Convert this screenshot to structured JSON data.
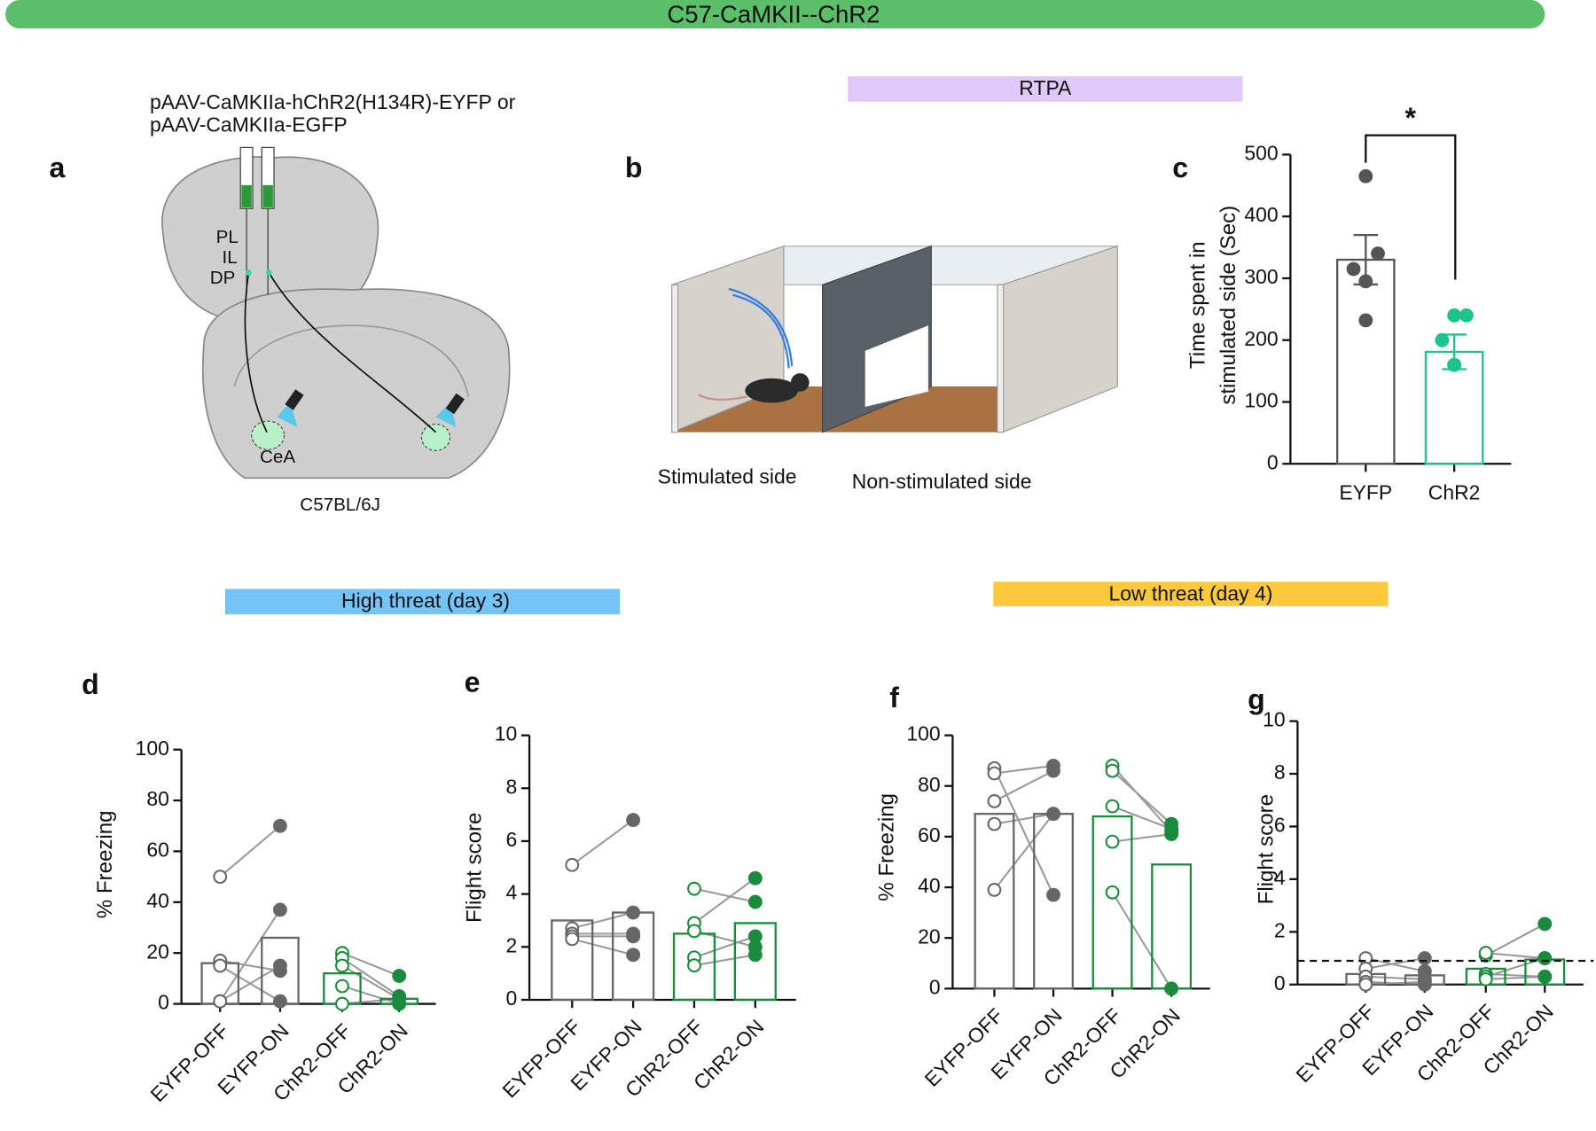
{
  "header": {
    "title": "C57-CaMKII--ChR2"
  },
  "banners": {
    "rtpa": "RTPA",
    "high": "High threat (day 3)",
    "low": "Low threat (day 4)"
  },
  "panel_labels": [
    "a",
    "b",
    "c",
    "d",
    "e",
    "f",
    "g"
  ],
  "panel_a": {
    "virus": [
      "pAAV-CaMKIIa-hChR2(H134R)-EYFP or",
      "pAAV-CaMKIIa-EGFP"
    ],
    "regions": [
      "PL",
      "IL",
      "DP",
      "CeA"
    ],
    "strain": "C57BL/6J"
  },
  "panel_b": {
    "sides": [
      "Stimulated side",
      "Non-stimulated side"
    ]
  },
  "chart_data": [
    {
      "type": "bar",
      "y_label": [
        "Time spent in",
        "stimulated side (Sec)"
      ],
      "categories": [
        "EYFP",
        "ChR2"
      ],
      "values": [
        330,
        181
      ],
      "errors": [
        40,
        28
      ],
      "colors": [
        "#555555",
        "#1ec38a"
      ],
      "filled": [
        true,
        true
      ],
      "points": [
        [
          465,
          340,
          315,
          295,
          232
        ],
        [
          240,
          240,
          200,
          160,
          160
        ]
      ],
      "ylim": [
        0,
        500
      ],
      "yticks": [
        0,
        100,
        200,
        300,
        400,
        500
      ],
      "significance": "*"
    },
    {
      "type": "bar",
      "y_label": [
        "% Freezing"
      ],
      "categories": [
        "EYFP-OFF",
        "EYFP-ON",
        "ChR2-OFF",
        "ChR2-ON"
      ],
      "values": [
        16,
        26,
        12,
        2
      ],
      "colors": [
        "#666666",
        "#666666",
        "#1a8a3c",
        "#1a8a3c"
      ],
      "filled": [
        false,
        true,
        false,
        true
      ],
      "paired": true,
      "points": [
        [
          50,
          17,
          15,
          1,
          1
        ],
        [
          70,
          13,
          1,
          37,
          15
        ],
        [
          20,
          18,
          15,
          7,
          0
        ],
        [
          11,
          3,
          2,
          0,
          2
        ]
      ],
      "ylim": [
        0,
        100
      ],
      "yticks": [
        0,
        20,
        40,
        60,
        80,
        100
      ]
    },
    {
      "type": "bar",
      "y_label": [
        "Flight score"
      ],
      "categories": [
        "EYFP-OFF",
        "EYFP-ON",
        "ChR2-OFF",
        "ChR2-ON"
      ],
      "values": [
        3.0,
        3.3,
        2.5,
        2.9
      ],
      "colors": [
        "#666666",
        "#666666",
        "#1a8a3c",
        "#1a8a3c"
      ],
      "filled": [
        false,
        true,
        false,
        true
      ],
      "paired": true,
      "points": [
        [
          5.1,
          2.7,
          2.5,
          2.4,
          2.3
        ],
        [
          6.8,
          3.3,
          2.5,
          2.4,
          1.7
        ],
        [
          4.2,
          2.9,
          1.6,
          1.3,
          2.6
        ],
        [
          3.7,
          4.6,
          2.4,
          1.7,
          2.0
        ]
      ],
      "ylim": [
        0,
        10
      ],
      "yticks": [
        0,
        2,
        4,
        6,
        8,
        10
      ]
    },
    {
      "type": "bar",
      "y_label": [
        "% Freezing"
      ],
      "categories": [
        "EYFP-OFF",
        "EYFP-ON",
        "ChR2-OFF",
        "ChR2-ON"
      ],
      "values": [
        69,
        69,
        68,
        49
      ],
      "colors": [
        "#666666",
        "#666666",
        "#1a8a3c",
        "#1a8a3c"
      ],
      "filled": [
        false,
        true,
        false,
        true
      ],
      "paired": true,
      "points": [
        [
          87,
          85,
          74,
          65,
          39
        ],
        [
          37,
          88,
          86,
          69,
          69
        ],
        [
          88,
          86,
          72,
          58,
          38
        ],
        [
          62,
          65,
          63,
          61,
          0
        ]
      ],
      "ylim": [
        0,
        100
      ],
      "yticks": [
        0,
        20,
        40,
        60,
        80,
        100
      ]
    },
    {
      "type": "bar",
      "y_label": [
        "Flight score"
      ],
      "categories": [
        "EYFP-OFF",
        "EYFP-ON",
        "ChR2-OFF",
        "ChR2-ON"
      ],
      "values": [
        0.4,
        0.35,
        0.6,
        0.95
      ],
      "colors": [
        "#666666",
        "#666666",
        "#1a8a3c",
        "#1a8a3c"
      ],
      "filled": [
        false,
        true,
        false,
        true
      ],
      "paired": true,
      "points": [
        [
          1.0,
          0.6,
          0.3,
          0.1,
          0
        ],
        [
          0.5,
          1.0,
          0.2,
          0,
          0.1
        ],
        [
          1.1,
          1.2,
          0.4,
          0.3,
          0.2
        ],
        [
          2.3,
          1.0,
          0.3,
          1.0,
          0.3
        ]
      ],
      "ylim": [
        0,
        10
      ],
      "yticks": [
        0,
        2,
        4,
        6,
        8,
        10
      ],
      "reference_line": 0.9
    }
  ]
}
